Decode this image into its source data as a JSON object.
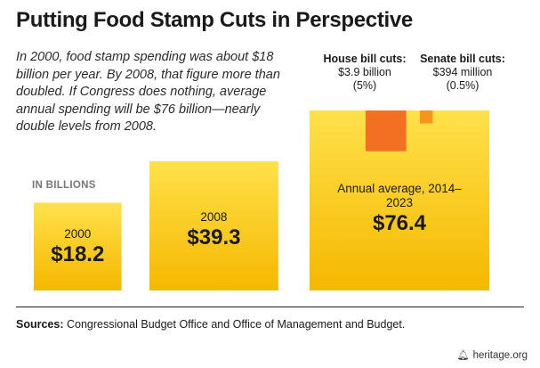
{
  "header": {
    "title": "Putting Food Stamp Cuts in Perspective",
    "intro": "In 2000, food stamp spending was about $18 billion per year. By 2008, that figure more than doubled. If Congress does nothing, average annual spending will be $76 billion—nearly double levels from 2008."
  },
  "chart_data": {
    "type": "bar",
    "unit_label": "IN BILLIONS",
    "categories": [
      "2000",
      "2008",
      "Annual average, 2014–2023"
    ],
    "values": [
      18.2,
      39.3,
      76.4
    ],
    "value_labels": [
      "$18.2",
      "$39.3",
      "$76.4"
    ],
    "cuts": [
      {
        "title": "House bill cuts:",
        "amount": "$3.9 billion",
        "pct": "(5%)",
        "value": 3.9
      },
      {
        "title": "Senate bill cuts:",
        "amount": "$394 million",
        "pct": "(0.5%)",
        "value": 0.394
      }
    ]
  },
  "colors": {
    "bar_light": "#ffe14a",
    "bar_dark": "#f5b800",
    "house_cut": "#f36f21",
    "senate_cut": "#f7941d"
  },
  "footer": {
    "sources_label": "Sources:",
    "sources_text": " Congressional Budget Office and Office of Management and Budget.",
    "brand": "heritage.org",
    "brand_icon": "liberty-bell-icon"
  }
}
